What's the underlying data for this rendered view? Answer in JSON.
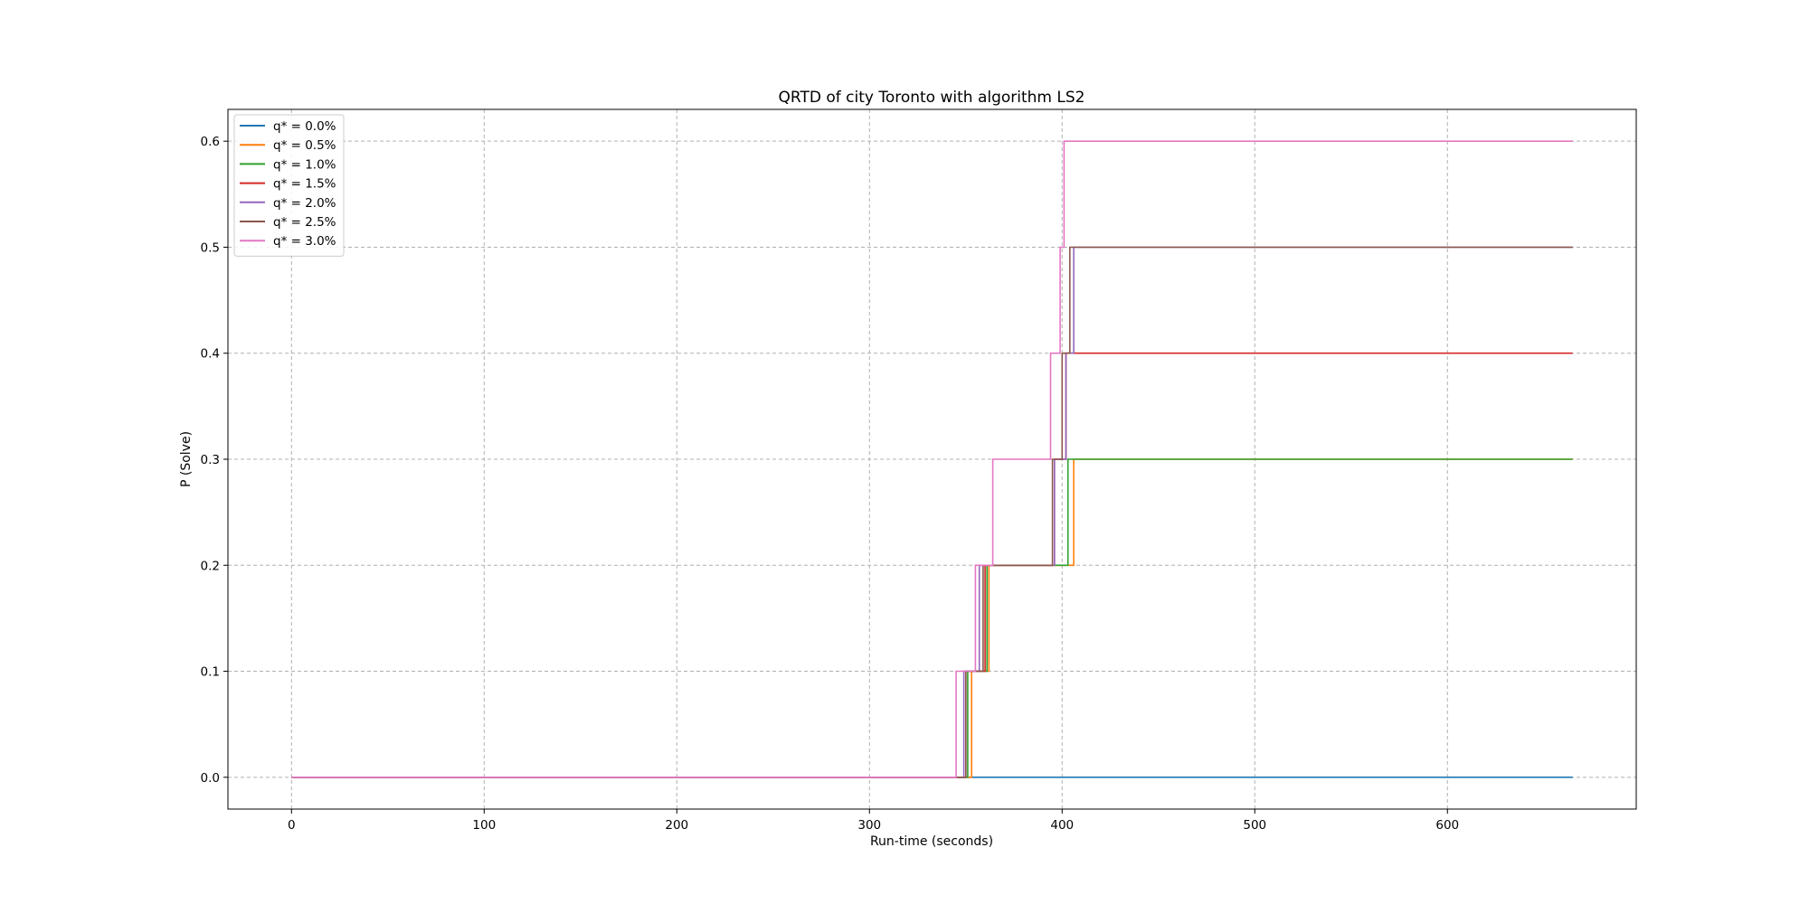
{
  "chart_data": {
    "type": "line",
    "title": "QRTD of city Toronto with algorithm LS2",
    "xlabel": "Run-time (seconds)",
    "ylabel": "P (Solve)",
    "xlim": [
      -33,
      698
    ],
    "ylim": [
      -0.03,
      0.63
    ],
    "xticks": [
      0,
      100,
      200,
      300,
      400,
      500,
      600
    ],
    "yticks": [
      0.0,
      0.1,
      0.2,
      0.3,
      0.4,
      0.5,
      0.6
    ],
    "xtick_labels": [
      "0",
      "100",
      "200",
      "300",
      "400",
      "500",
      "600"
    ],
    "ytick_labels": [
      "0.0",
      "0.1",
      "0.2",
      "0.3",
      "0.4",
      "0.5",
      "0.6"
    ],
    "grid": true,
    "legend_position": "top-left",
    "step": true,
    "series": [
      {
        "name": "q* = 0.0%",
        "color": "#1f77b4",
        "x": [
          0,
          665
        ],
        "y": [
          0.0,
          0.0
        ]
      },
      {
        "name": "q* = 0.5%",
        "color": "#ff7f0e",
        "x": [
          0,
          353,
          362,
          406,
          665
        ],
        "y": [
          0.0,
          0.1,
          0.2,
          0.3,
          0.3
        ]
      },
      {
        "name": "q* = 1.0%",
        "color": "#2ca02c",
        "x": [
          0,
          351,
          361,
          403,
          665
        ],
        "y": [
          0.0,
          0.1,
          0.2,
          0.3,
          0.3
        ]
      },
      {
        "name": "q* = 1.5%",
        "color": "#d62728",
        "x": [
          0,
          350,
          360,
          396,
          402,
          410,
          665
        ],
        "y": [
          0.0,
          0.1,
          0.2,
          0.3,
          0.4,
          0.4,
          0.4
        ]
      },
      {
        "name": "q* = 2.0%",
        "color": "#9467bd",
        "x": [
          0,
          349,
          357,
          396,
          402,
          406,
          665
        ],
        "y": [
          0.0,
          0.1,
          0.2,
          0.3,
          0.4,
          0.5,
          0.5
        ]
      },
      {
        "name": "q* = 2.5%",
        "color": "#8c564b",
        "x": [
          0,
          350,
          359,
          395,
          400,
          404,
          665
        ],
        "y": [
          0.0,
          0.1,
          0.2,
          0.3,
          0.4,
          0.5,
          0.5
        ]
      },
      {
        "name": "q* = 3.0%",
        "color": "#e377c2",
        "x": [
          0,
          345,
          355,
          364,
          394,
          399,
          401,
          665
        ],
        "y": [
          0.0,
          0.1,
          0.2,
          0.3,
          0.4,
          0.5,
          0.6,
          0.6
        ]
      }
    ]
  }
}
